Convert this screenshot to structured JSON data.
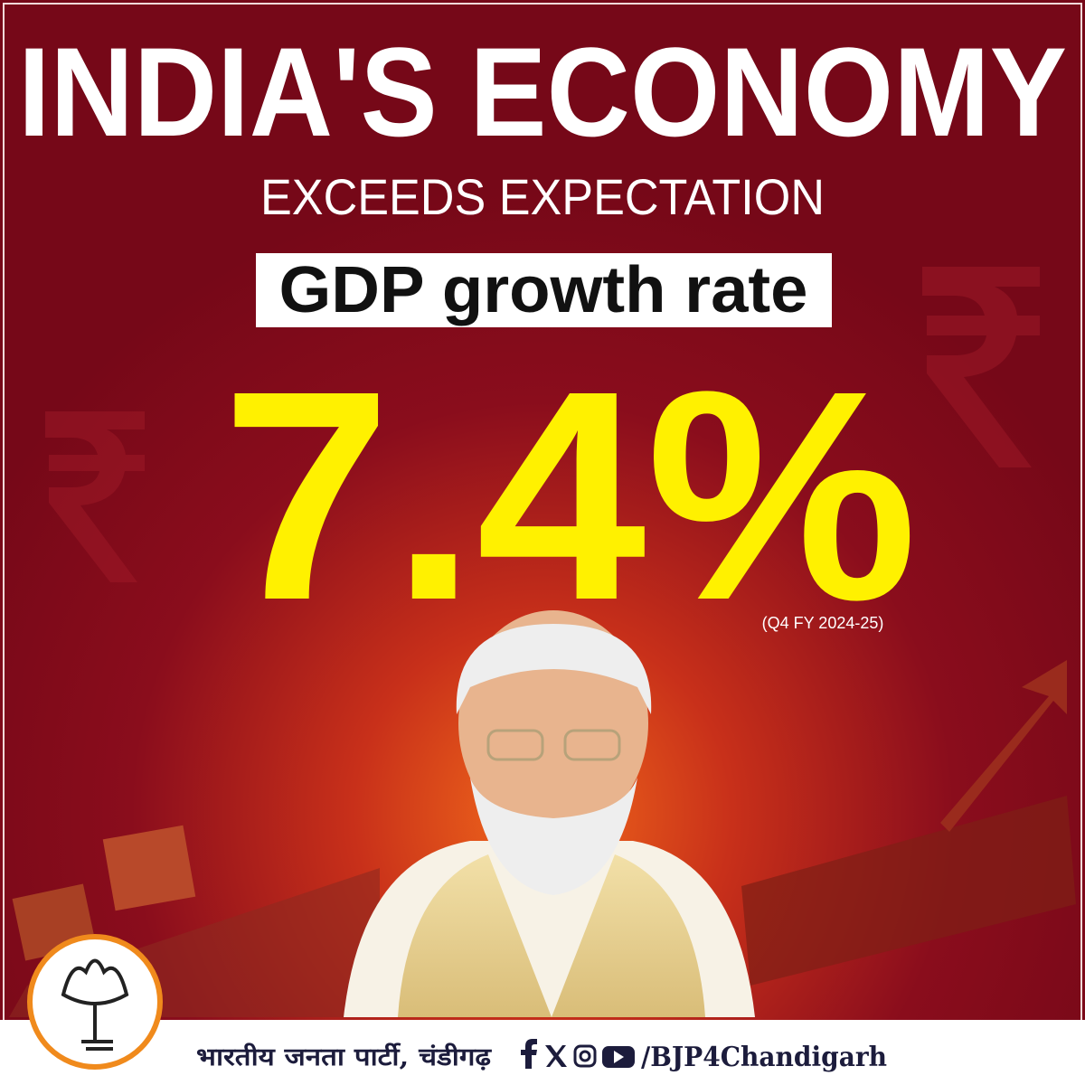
{
  "header": {
    "title": "INDIA'S ECONOMY",
    "subtitle": "EXCEEDS EXPECTATION"
  },
  "highlight": {
    "label": "GDP growth rate",
    "value": "7.4%",
    "period": "(Q4 FY 2024-25)"
  },
  "footer": {
    "organization": "भारतीय जनता पार्टी, चंडीगढ़",
    "handle": "/BJP4Chandigarh"
  }
}
